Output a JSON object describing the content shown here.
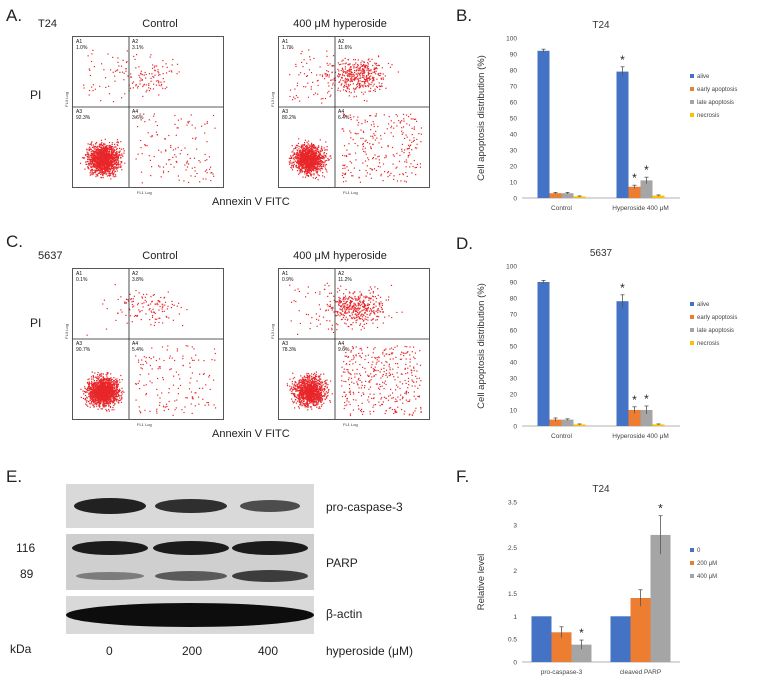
{
  "panels": {
    "A": {
      "letter": "A.",
      "cell_line": "T24",
      "titles": [
        "Control",
        "400 μM hyperoside"
      ],
      "ylabel": "PI",
      "xlabel": "Annexin V FITC",
      "axis_y": "FL3 Log",
      "axis_x": "FL1 Log",
      "plots": [
        {
          "quadrants": [
            {
              "name": "A1",
              "value": "1.0%"
            },
            {
              "name": "A2",
              "value": "3.1%"
            },
            {
              "name": "A3",
              "value": "92.3%"
            },
            {
              "name": "A4",
              "value": "3.6%"
            }
          ],
          "counts": {
            "A1": 40,
            "A2": 110,
            "A3": 1400,
            "A4": 130
          }
        },
        {
          "quadrants": [
            {
              "name": "A1",
              "value": "1.7%"
            },
            {
              "name": "A2",
              "value": "11.6%"
            },
            {
              "name": "A3",
              "value": "80.2%"
            },
            {
              "name": "A4",
              "value": "6.4%"
            }
          ],
          "counts": {
            "A1": 60,
            "A2": 420,
            "A3": 1200,
            "A4": 260
          }
        }
      ]
    },
    "C": {
      "letter": "C.",
      "cell_line": "5637",
      "titles": [
        "Control",
        "400 μM hyperoside"
      ],
      "ylabel": "PI",
      "xlabel": "Annexin V FITC",
      "axis_y": "FL3 Log",
      "axis_x": "FL1 Log",
      "plots": [
        {
          "quadrants": [
            {
              "name": "A1",
              "value": "0.1%"
            },
            {
              "name": "A2",
              "value": "3.8%"
            },
            {
              "name": "A3",
              "value": "90.7%"
            },
            {
              "name": "A4",
              "value": "5.4%"
            }
          ],
          "counts": {
            "A1": 10,
            "A2": 120,
            "A3": 1500,
            "A4": 150
          }
        },
        {
          "quadrants": [
            {
              "name": "A1",
              "value": "0.9%"
            },
            {
              "name": "A2",
              "value": "11.2%"
            },
            {
              "name": "A3",
              "value": "78.3%"
            },
            {
              "name": "A4",
              "value": "9.6%"
            }
          ],
          "counts": {
            "A1": 40,
            "A2": 420,
            "A3": 1200,
            "A4": 380
          }
        }
      ]
    },
    "E": {
      "letter": "E.",
      "bands": [
        "pro-caspase-3",
        "PARP",
        "β-actin"
      ],
      "markers": [
        "116",
        "89"
      ],
      "kda": "kDa",
      "lanes": [
        "0",
        "200",
        "400"
      ],
      "treatment_label": "hyperoside (μM)"
    },
    "B": {
      "letter": "B."
    },
    "D": {
      "letter": "D."
    },
    "F": {
      "letter": "F."
    }
  },
  "chart_data": [
    {
      "id": "B",
      "type": "bar",
      "title": "T24",
      "ylabel": "Cell apoptosis distribution (%)",
      "xlabel": "",
      "categories": [
        "Control",
        "Hyperoside  400 μM"
      ],
      "ylim": [
        0,
        100
      ],
      "yticks": [
        "0",
        "10",
        "20",
        "30",
        "40",
        "50",
        "60",
        "70",
        "80",
        "90",
        "100"
      ],
      "legend_position": "right",
      "series": [
        {
          "name": "alive",
          "color": "#4472C4",
          "values": [
            92,
            79
          ],
          "errors": [
            1,
            3
          ],
          "sig": [
            "",
            "*"
          ]
        },
        {
          "name": "early apoptosis",
          "color": "#ED7D31",
          "values": [
            3,
            7
          ],
          "errors": [
            0.5,
            1
          ],
          "sig": [
            "",
            "*"
          ]
        },
        {
          "name": "late apoptosis",
          "color": "#A5A5A5",
          "values": [
            3,
            11
          ],
          "errors": [
            0.5,
            2
          ],
          "sig": [
            "",
            "*"
          ]
        },
        {
          "name": "necrosis",
          "color": "#FFC000",
          "values": [
            1,
            1.5
          ],
          "errors": [
            0.3,
            0.4
          ],
          "sig": [
            "",
            ""
          ]
        }
      ]
    },
    {
      "id": "D",
      "type": "bar",
      "title": "5637",
      "ylabel": "Cell apoptosis distribution (%)",
      "xlabel": "",
      "categories": [
        "Control",
        "Hyperoside  400 μM"
      ],
      "ylim": [
        0,
        100
      ],
      "yticks": [
        "0",
        "10",
        "20",
        "30",
        "40",
        "50",
        "60",
        "70",
        "80",
        "90",
        "100"
      ],
      "legend_position": "right",
      "series": [
        {
          "name": "alive",
          "color": "#4472C4",
          "values": [
            90,
            78
          ],
          "errors": [
            1,
            4
          ],
          "sig": [
            "",
            "*"
          ]
        },
        {
          "name": "early apoptosis",
          "color": "#ED7D31",
          "values": [
            4,
            10
          ],
          "errors": [
            1,
            2
          ],
          "sig": [
            "",
            "*"
          ]
        },
        {
          "name": "late apoptosis",
          "color": "#A5A5A5",
          "values": [
            4,
            10
          ],
          "errors": [
            0.5,
            2.5
          ],
          "sig": [
            "",
            "*"
          ]
        },
        {
          "name": "necrosis",
          "color": "#FFC000",
          "values": [
            1,
            1
          ],
          "errors": [
            0.3,
            0.3
          ],
          "sig": [
            "",
            ""
          ]
        }
      ]
    },
    {
      "id": "F",
      "type": "bar",
      "title": "T24",
      "ylabel": "Relative level",
      "xlabel": "",
      "categories": [
        "pro-caspase-3",
        "cleaved PARP"
      ],
      "ylim": [
        0,
        3.5
      ],
      "yticks": [
        "0",
        "0.5",
        "1",
        "1.5",
        "2",
        "2.5",
        "3",
        "3.5"
      ],
      "legend_position": "right",
      "series": [
        {
          "name": "0",
          "color": "#4472C4",
          "values": [
            1,
            1
          ],
          "errors": [
            0,
            0
          ],
          "sig": [
            "",
            ""
          ]
        },
        {
          "name": "200 μM",
          "color": "#ED7D31",
          "values": [
            0.65,
            1.4
          ],
          "errors": [
            0.12,
            0.18
          ],
          "sig": [
            "",
            ""
          ]
        },
        {
          "name": "400 μM",
          "color": "#A5A5A5",
          "values": [
            0.38,
            2.78
          ],
          "errors": [
            0.1,
            0.42
          ],
          "sig": [
            "*",
            "*"
          ]
        }
      ]
    }
  ]
}
